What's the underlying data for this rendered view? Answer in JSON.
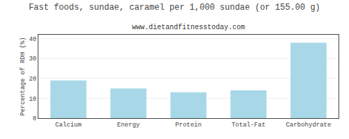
{
  "chart_data": {
    "type": "bar",
    "title": "Fast foods, sundae, caramel per 1,000 sundae (or 155.00 g)",
    "subtitle": "www.dietandfitnesstoday.com",
    "categories": [
      "Calcium",
      "Energy",
      "Protein",
      "Total-Fat",
      "Carbohydrate"
    ],
    "values": [
      19,
      15,
      13,
      14,
      38
    ],
    "color": "#a8d8e8",
    "ylabel": "Percentage of RDH (%)",
    "ylim": [
      0,
      42
    ],
    "yticks": [
      0,
      10,
      20,
      30,
      40
    ],
    "grid": true
  }
}
